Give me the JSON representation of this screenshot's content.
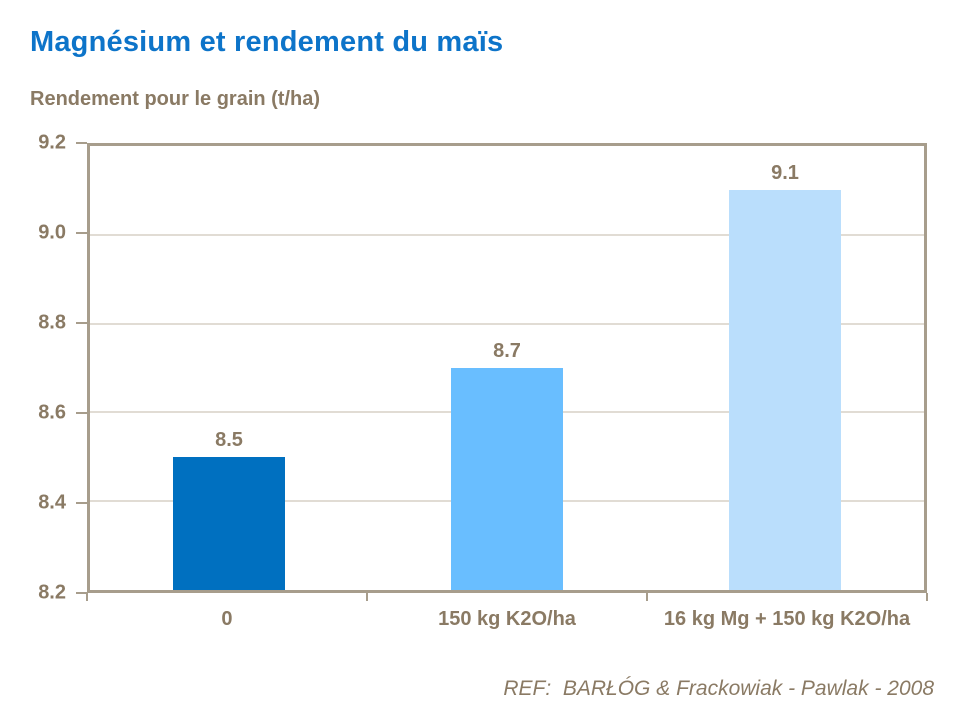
{
  "page": {
    "title": "Magnésium et rendement du maïs",
    "subtitle": "Rendement pour le grain (t/ha)",
    "reference": "REF:  BARŁÓG & Frackowiak - Pawlak - 2008"
  },
  "colors": {
    "title_blue": "#0D74C9",
    "text_brown": "#8A7A64",
    "axis_line": "#A79D8C",
    "gridline": "#C3B9A9",
    "bar_colors": [
      "#0070C0",
      "#69BEFF",
      "#BADEFC"
    ]
  },
  "chart_data": {
    "type": "bar",
    "title": "Magnésium et rendement du maïs",
    "ylabel": "Rendement pour le grain (t/ha)",
    "xlabel": "",
    "categories": [
      "0",
      "150 kg K2O/ha",
      "16 kg Mg + 150 kg K2O/ha"
    ],
    "values": [
      8.5,
      8.7,
      9.1
    ],
    "data_labels": [
      "8.5",
      "8.7",
      "9.1"
    ],
    "yticks": [
      8.2,
      8.4,
      8.6,
      8.8,
      9.0,
      9.2
    ],
    "ytick_labels": [
      "8.2",
      "8.4",
      "8.6",
      "8.8",
      "9.0",
      "9.2"
    ],
    "ylim": [
      8.2,
      9.2
    ],
    "grid": true,
    "legend": false,
    "bar_colors": [
      "#0070C0",
      "#69BEFF",
      "#BADEFC"
    ],
    "annotation": "REF:  BARŁÓG & Frackowiak - Pawlak - 2008"
  }
}
